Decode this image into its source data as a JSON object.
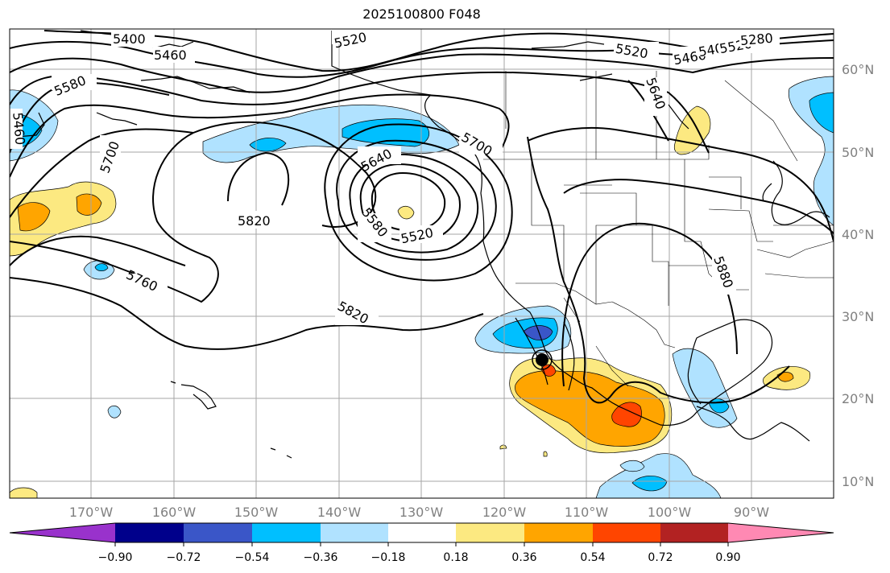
{
  "title": "2025100800 F048",
  "map": {
    "lon_ticks": [
      {
        "value": -170,
        "label": "170°W"
      },
      {
        "value": -160,
        "label": "160°W"
      },
      {
        "value": -150,
        "label": "150°W"
      },
      {
        "value": -140,
        "label": "140°W"
      },
      {
        "value": -130,
        "label": "130°W"
      },
      {
        "value": -120,
        "label": "120°W"
      },
      {
        "value": -110,
        "label": "110°W"
      },
      {
        "value": -100,
        "label": "100°W"
      },
      {
        "value": -90,
        "label": "90°W"
      }
    ],
    "lat_ticks": [
      {
        "value": 60,
        "label": "60°N"
      },
      {
        "value": 50,
        "label": "50°N"
      },
      {
        "value": 40,
        "label": "40°N"
      },
      {
        "value": 30,
        "label": "30°N"
      },
      {
        "value": 20,
        "label": "20°N"
      },
      {
        "value": 10,
        "label": "10°N"
      }
    ],
    "contour_labels": [
      "5400",
      "5460",
      "5520",
      "5580",
      "5640",
      "5700",
      "5760",
      "5820",
      "5880",
      "5280"
    ],
    "marker": {
      "name": "storm-center-marker",
      "lon": -115.5,
      "lat": 24.5
    }
  },
  "colorbar": {
    "ticks": [
      "−0.90",
      "−0.72",
      "−0.54",
      "−0.36",
      "−0.18",
      "0.18",
      "0.36",
      "0.54",
      "0.72",
      "0.90"
    ],
    "colors": [
      "#9932cc",
      "#00008b",
      "#3a56c8",
      "#00bfff",
      "#b0e2ff",
      "#ffffff",
      "#fce981",
      "#ffa500",
      "#ff4500",
      "#b22222",
      "#ff89b3"
    ]
  }
}
